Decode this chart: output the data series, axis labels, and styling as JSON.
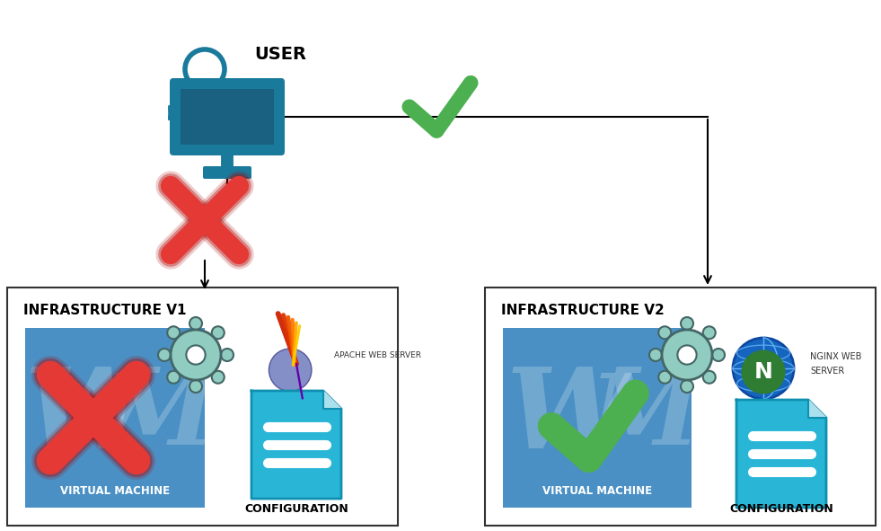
{
  "bg_color": "#ffffff",
  "user_label": "USER",
  "infra_v1_label": "INFRASTRUCTURE V1",
  "infra_v2_label": "INFRASTRUCTURE V2",
  "vm_label": "VIRTUAL MACHINE",
  "config_label": "CONFIGURATION",
  "apache_label": "APACHE WEB SERVER",
  "nginx_label": "NGINX WEB\nSERVER",
  "teal_color": "#1a7a9b",
  "teal_dark": "#1a6080",
  "blue_box_color": "#4a90c4",
  "cyan_color": "#29b6d6",
  "cyan_dark": "#1090b0",
  "green_check_color": "#4caf50",
  "green_dark": "#388e3c",
  "red_x_color": "#e53935",
  "gear_color": "#90ccc0",
  "gear_dark": "#555555",
  "fig_w": 9.81,
  "fig_h": 5.91
}
